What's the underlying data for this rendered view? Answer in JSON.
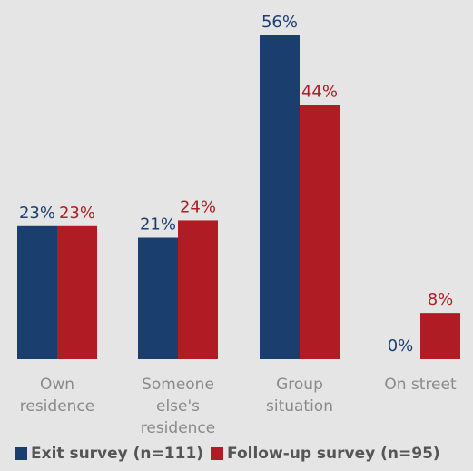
{
  "chart_data": {
    "type": "bar",
    "categories": [
      [
        "Own",
        "residence"
      ],
      [
        "Someone",
        "else's",
        "residence"
      ],
      [
        "Group",
        "situation"
      ],
      [
        "On street"
      ]
    ],
    "series": [
      {
        "name": "Exit survey (n=111)",
        "values": [
          23,
          21,
          56,
          0
        ],
        "labels": [
          "23%",
          "21%",
          "56%",
          "0%"
        ],
        "color": "#1a3f6e"
      },
      {
        "name": "Follow-up survey (n=95)",
        "values": [
          23,
          24,
          44,
          8
        ],
        "labels": [
          "23%",
          "24%",
          "44%",
          "8%"
        ],
        "color": "#b01c24"
      }
    ],
    "ylim": [
      0,
      56
    ],
    "grid": false,
    "legend_position": "bottom",
    "background": "#e5e5e5",
    "category_label_color": "#8a8a8a"
  },
  "legend": {
    "items": [
      {
        "label": "Exit survey (n=111)",
        "color": "#1a3f6e"
      },
      {
        "label": "Follow-up survey (n=95)",
        "color": "#b01c24"
      }
    ]
  }
}
